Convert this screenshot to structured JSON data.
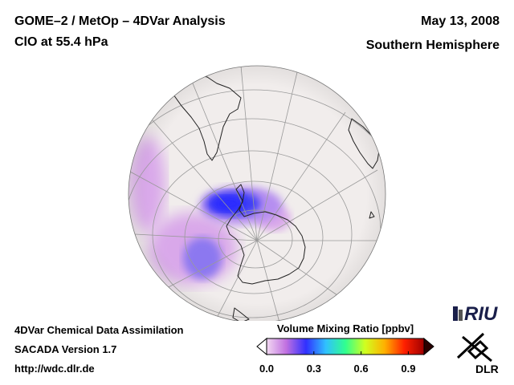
{
  "header": {
    "title": "GOME–2 / MetOp – 4DVar Analysis",
    "subtitle": "ClO at 55.4 hPa",
    "date": "May 13, 2008",
    "hemisphere": "Southern Hemisphere"
  },
  "footer": {
    "line1": "4DVar Chemical Data Assimilation",
    "line2": "SACADA Version 1.7",
    "line3": "http://wdc.dlr.de"
  },
  "colorbar": {
    "title": "Volume Mixing Ratio [ppbv]",
    "min": 0.0,
    "max": 1.0,
    "ticks": [
      {
        "value": 0.0,
        "label": "0.0"
      },
      {
        "value": 0.3,
        "label": "0.3"
      },
      {
        "value": 0.6,
        "label": "0.6"
      },
      {
        "value": 0.9,
        "label": "0.9"
      }
    ],
    "colors": [
      "#f2d8f2",
      "#c070e0",
      "#3030ff",
      "#30c0ff",
      "#30ff90",
      "#d0ff20",
      "#ffb000",
      "#ff2000",
      "#a00000"
    ]
  },
  "logos": {
    "riu": "RIU",
    "dlr": "DLR"
  },
  "map": {
    "ocean_color": "#f1edec",
    "land_outline_color": "#222222",
    "graticule_color": "#9a9a9a"
  }
}
